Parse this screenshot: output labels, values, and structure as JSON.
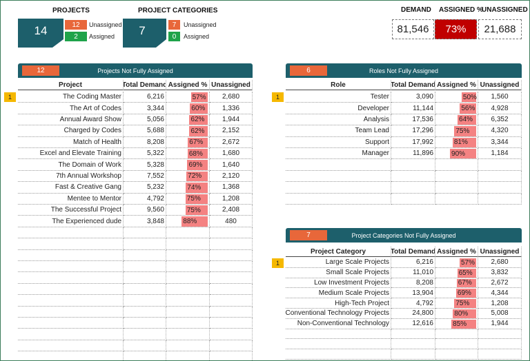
{
  "summary": {
    "projects": {
      "label": "PROJECTS",
      "total": 14,
      "unassigned": {
        "value": 12,
        "label": "Unassigned"
      },
      "assigned": {
        "value": 2,
        "label": "Assigned"
      }
    },
    "categories": {
      "label": "PROJECT CATEGORIES",
      "total": 7,
      "unassigned": {
        "value": 7,
        "label": "Unassigned"
      },
      "assigned": {
        "value": 0,
        "label": "Assigned"
      }
    }
  },
  "kpis": [
    {
      "label": "DEMAND",
      "value": "81,546"
    },
    {
      "label": "ASSIGNED %",
      "value": "73%"
    },
    {
      "label": "UNASSIGNED",
      "value": "21,688"
    }
  ],
  "tables": [
    {
      "count": 12,
      "title": "Projects Not Fully Assigned",
      "marker": "1",
      "columns": [
        "Project",
        "Total Demand",
        "Assigned %",
        "Unassigned"
      ],
      "rows": [
        [
          "The Coding Master",
          "6,216",
          "57%",
          "2,680"
        ],
        [
          "The Art of Codes",
          "3,344",
          "60%",
          "1,336"
        ],
        [
          "Annual Award Show",
          "5,056",
          "62%",
          "1,944"
        ],
        [
          "Charged by Codes",
          "5,688",
          "62%",
          "2,152"
        ],
        [
          "Match of Health",
          "8,208",
          "67%",
          "2,672"
        ],
        [
          "Excel and Elevate Training",
          "5,322",
          "68%",
          "1,680"
        ],
        [
          "The Domain of Work",
          "5,328",
          "69%",
          "1,640"
        ],
        [
          "7th Annual Workshop",
          "7,552",
          "72%",
          "2,120"
        ],
        [
          "Fast & Creative Gang",
          "5,232",
          "74%",
          "1,368"
        ],
        [
          "Mentee to Mentor",
          "4,792",
          "75%",
          "1,208"
        ],
        [
          "The Successful Project",
          "9,560",
          "75%",
          "2,408"
        ],
        [
          "The Experienced dude",
          "3,848",
          "88%",
          "480"
        ]
      ]
    },
    {
      "count": 6,
      "title": "Roles Not Fully Assigned",
      "marker": "1",
      "columns": [
        "Role",
        "Total Demand",
        "Assigned %",
        "Unassigned"
      ],
      "rows": [
        [
          "Tester",
          "3,090",
          "50%",
          "1,560"
        ],
        [
          "Developer",
          "11,144",
          "56%",
          "4,928"
        ],
        [
          "Analysis",
          "17,536",
          "64%",
          "6,352"
        ],
        [
          "Team Lead",
          "17,296",
          "75%",
          "4,320"
        ],
        [
          "Support",
          "17,992",
          "81%",
          "3,344"
        ],
        [
          "Manager",
          "11,896",
          "90%",
          "1,184"
        ]
      ]
    },
    {
      "count": 7,
      "title": "Project Categories Not Fully Assigned",
      "marker": "1",
      "columns": [
        "Project Category",
        "Total Demand",
        "Assigned %",
        "Unassigned"
      ],
      "rows": [
        [
          "Large Scale Projects",
          "6,216",
          "57%",
          "2,680"
        ],
        [
          "Small Scale Projects",
          "11,010",
          "65%",
          "3,832"
        ],
        [
          "Low Investment Projects",
          "8,208",
          "67%",
          "2,672"
        ],
        [
          "Medium Scale Projects",
          "13,904",
          "69%",
          "4,344"
        ],
        [
          "High-Tech Project",
          "4,792",
          "75%",
          "1,208"
        ],
        [
          "Conventional Technology Projects",
          "24,800",
          "80%",
          "5,008"
        ],
        [
          "Non-Conventional Technology",
          "12,616",
          "85%",
          "1,944"
        ]
      ]
    }
  ]
}
